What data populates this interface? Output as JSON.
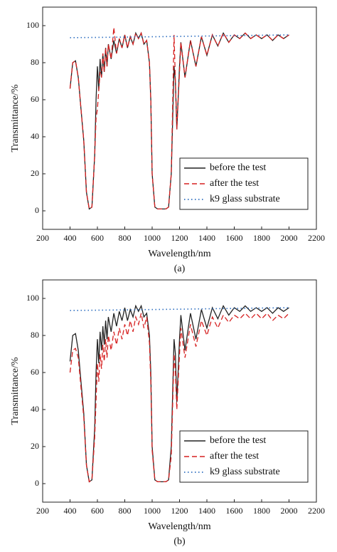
{
  "chart_data": [
    {
      "type": "line",
      "caption": "(a)",
      "xlabel": "Wavelength/nm",
      "ylabel": "Transmittance/%",
      "xlim": [
        200,
        2200
      ],
      "xticks": [
        200,
        400,
        600,
        800,
        1000,
        1200,
        1400,
        1600,
        1800,
        2000,
        2200
      ],
      "ylim": [
        -10,
        110
      ],
      "yticks": [
        0,
        20,
        40,
        60,
        80,
        100
      ],
      "legend": "lower right",
      "x": [
        400,
        420,
        440,
        460,
        480,
        500,
        520,
        540,
        560,
        580,
        590,
        600,
        610,
        620,
        630,
        640,
        650,
        660,
        670,
        680,
        700,
        720,
        740,
        760,
        780,
        800,
        820,
        840,
        860,
        880,
        900,
        920,
        940,
        960,
        980,
        990,
        1000,
        1020,
        1040,
        1060,
        1080,
        1100,
        1120,
        1140,
        1160,
        1170,
        1180,
        1200,
        1210,
        1240,
        1280,
        1320,
        1360,
        1400,
        1440,
        1480,
        1520,
        1560,
        1600,
        1640,
        1680,
        1720,
        1760,
        1800,
        1840,
        1880,
        1920,
        1960,
        2000
      ],
      "series": [
        {
          "name": "before the test",
          "color": "#222222",
          "style": "solid",
          "values": [
            66,
            80,
            81,
            72,
            55,
            38,
            10,
            1,
            2,
            30,
            60,
            78,
            65,
            82,
            72,
            85,
            75,
            88,
            78,
            90,
            82,
            92,
            85,
            93,
            88,
            95,
            88,
            94,
            90,
            96,
            93,
            96,
            90,
            92,
            80,
            60,
            20,
            2,
            1,
            1,
            1,
            1,
            2,
            20,
            78,
            70,
            44,
            78,
            91,
            72,
            92,
            78,
            94,
            84,
            95,
            89,
            96,
            91,
            95,
            93,
            96,
            93,
            95,
            93,
            95,
            92,
            95,
            93,
            95
          ]
        },
        {
          "name": "after the test",
          "color": "#d62020",
          "style": "dashed",
          "values": [
            66,
            80,
            81,
            72,
            55,
            38,
            10,
            1,
            2,
            30,
            50,
            55,
            65,
            75,
            72,
            85,
            75,
            88,
            78,
            90,
            82,
            99,
            85,
            93,
            88,
            95,
            88,
            94,
            90,
            96,
            93,
            96,
            90,
            92,
            80,
            60,
            20,
            2,
            1,
            1,
            1,
            1,
            2,
            20,
            95,
            70,
            44,
            75,
            91,
            72,
            92,
            78,
            94,
            84,
            95,
            89,
            96,
            91,
            95,
            93,
            96,
            93,
            95,
            93,
            95,
            92,
            95,
            93,
            95
          ]
        },
        {
          "name": "k9 glass substrate",
          "color": "#2f6fc0",
          "style": "dotted",
          "x": [
            400,
            800,
            1200,
            1600,
            2000
          ],
          "values": [
            93.5,
            93.8,
            94.2,
            94.6,
            95
          ]
        }
      ]
    },
    {
      "type": "line",
      "caption": "(b)",
      "xlabel": "Wavelength/nm",
      "ylabel": "Transmittance/%",
      "xlim": [
        200,
        2200
      ],
      "xticks": [
        200,
        400,
        600,
        800,
        1000,
        1200,
        1400,
        1600,
        1800,
        2000,
        2200
      ],
      "ylim": [
        -10,
        110
      ],
      "yticks": [
        0,
        20,
        40,
        60,
        80,
        100
      ],
      "legend": "lower right",
      "x": [
        400,
        420,
        440,
        460,
        480,
        500,
        520,
        540,
        560,
        580,
        590,
        600,
        610,
        620,
        630,
        640,
        650,
        660,
        670,
        680,
        700,
        720,
        740,
        760,
        780,
        800,
        820,
        840,
        860,
        880,
        900,
        920,
        940,
        960,
        980,
        990,
        1000,
        1020,
        1040,
        1060,
        1080,
        1100,
        1120,
        1140,
        1160,
        1170,
        1180,
        1200,
        1210,
        1240,
        1280,
        1320,
        1360,
        1400,
        1440,
        1480,
        1520,
        1560,
        1600,
        1640,
        1680,
        1720,
        1760,
        1800,
        1840,
        1880,
        1920,
        1960,
        2000
      ],
      "series": [
        {
          "name": "before the test",
          "color": "#222222",
          "style": "solid",
          "values": [
            66,
            80,
            81,
            72,
            55,
            38,
            10,
            1,
            2,
            30,
            60,
            78,
            65,
            82,
            72,
            85,
            75,
            88,
            78,
            90,
            82,
            92,
            85,
            93,
            88,
            95,
            88,
            94,
            90,
            96,
            93,
            96,
            90,
            92,
            80,
            60,
            20,
            2,
            1,
            1,
            1,
            1,
            2,
            20,
            78,
            70,
            44,
            78,
            91,
            72,
            92,
            78,
            94,
            84,
            95,
            89,
            96,
            91,
            95,
            93,
            96,
            93,
            95,
            93,
            95,
            92,
            95,
            93,
            95
          ]
        },
        {
          "name": "after the test",
          "color": "#d62020",
          "style": "dashed",
          "values": [
            60,
            72,
            73,
            68,
            52,
            36,
            10,
            1,
            2,
            25,
            45,
            65,
            55,
            70,
            62,
            75,
            66,
            78,
            68,
            80,
            72,
            82,
            75,
            84,
            78,
            86,
            80,
            88,
            82,
            90,
            86,
            92,
            84,
            90,
            76,
            55,
            18,
            2,
            1,
            1,
            1,
            1,
            2,
            15,
            70,
            60,
            40,
            70,
            84,
            68,
            86,
            74,
            88,
            80,
            90,
            84,
            91,
            87,
            91,
            89,
            92,
            89,
            92,
            89,
            92,
            88,
            91,
            89,
            92
          ]
        },
        {
          "name": "k9 glass substrate",
          "color": "#2f6fc0",
          "style": "dotted",
          "x": [
            400,
            800,
            1200,
            1600,
            2000
          ],
          "values": [
            93.5,
            93.8,
            94.2,
            94.6,
            95
          ]
        }
      ]
    }
  ]
}
